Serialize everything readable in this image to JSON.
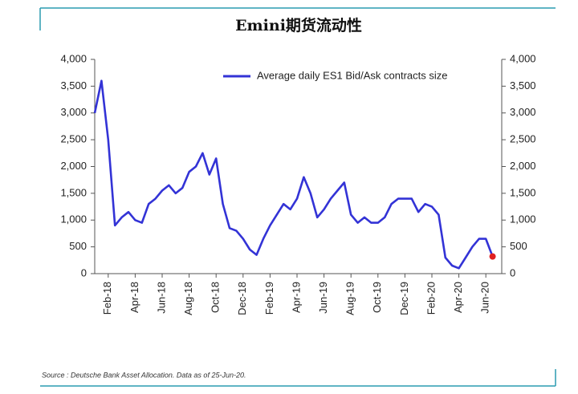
{
  "chart_data": {
    "type": "line",
    "title": "Emini期货流动性",
    "source": "Source : Deutsche Bank Asset Allocation. Data as of 25-Jun-20.",
    "categories": [
      null,
      null,
      "Feb-18",
      null,
      null,
      null,
      "Apr-18",
      null,
      null,
      null,
      "Jun-18",
      null,
      null,
      null,
      "Aug-18",
      null,
      null,
      null,
      "Oct-18",
      null,
      null,
      null,
      "Dec-18",
      null,
      null,
      null,
      "Feb-19",
      null,
      null,
      null,
      "Apr-19",
      null,
      null,
      null,
      "Jun-19",
      null,
      null,
      null,
      "Aug-19",
      null,
      null,
      null,
      "Oct-19",
      null,
      null,
      null,
      "Dec-19",
      null,
      null,
      null,
      "Feb-20",
      null,
      null,
      null,
      "Apr-20",
      null,
      null,
      null,
      "Jun-20",
      null
    ],
    "series": [
      {
        "name": "Average daily ES1 Bid/Ask contracts size",
        "color": "#3333d6",
        "values": [
          3000,
          3600,
          2500,
          900,
          1050,
          1150,
          1000,
          950,
          1300,
          1400,
          1550,
          1650,
          1500,
          1600,
          1900,
          2000,
          2250,
          1850,
          2150,
          1300,
          850,
          800,
          650,
          450,
          350,
          650,
          900,
          1100,
          1300,
          1200,
          1400,
          1800,
          1500,
          1050,
          1200,
          1400,
          1550,
          1700,
          1100,
          950,
          1050,
          950,
          950,
          1050,
          1300,
          1400,
          1400,
          1400,
          1150,
          1300,
          1250,
          1100,
          300,
          150,
          100,
          300,
          500,
          650,
          650,
          320
        ]
      }
    ],
    "last_point_color": "#e02020",
    "ylim": [
      0,
      4000
    ],
    "yticks": [
      0,
      500,
      {
        "value": 1000,
        "label": "1,000"
      },
      {
        "value": 1500,
        "label": "1,500"
      },
      {
        "value": 2000,
        "label": "2,000"
      },
      {
        "value": 2500,
        "label": "2,500"
      },
      {
        "value": 3000,
        "label": "3,000"
      },
      {
        "value": 3500,
        "label": "3,500"
      },
      {
        "value": 4000,
        "label": "4,000"
      }
    ],
    "legend": "upper right"
  }
}
